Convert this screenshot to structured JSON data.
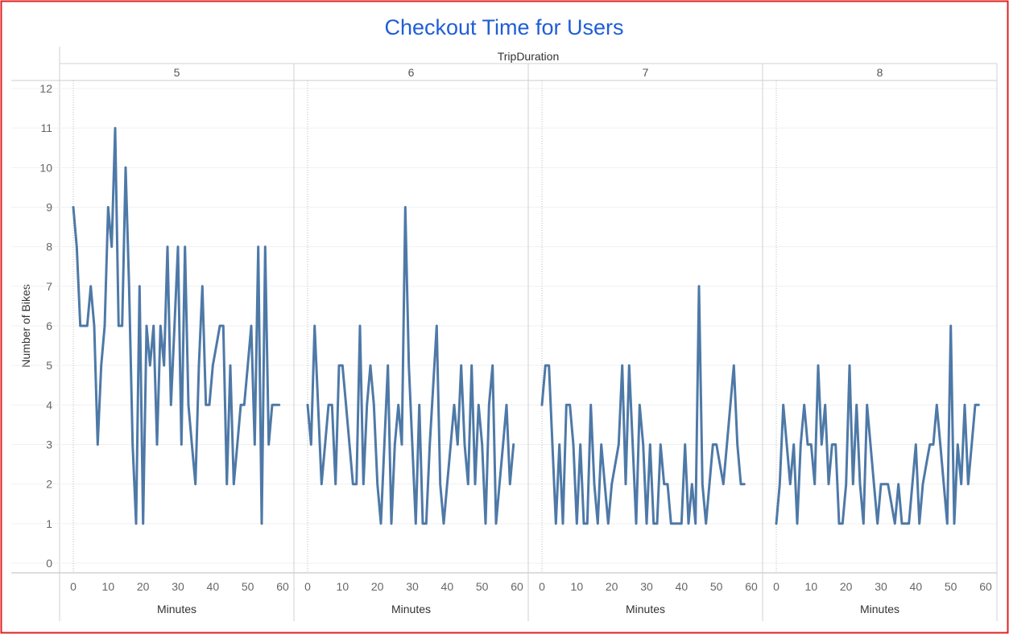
{
  "chart_data": {
    "type": "line",
    "title": "Checkout Time for Users",
    "column_header": "TripDuration",
    "xlabel": "Minutes",
    "ylabel": "Number of Bikes",
    "ylim": [
      0,
      12
    ],
    "y_ticks": [
      "0",
      "1",
      "2",
      "3",
      "4",
      "5",
      "6",
      "7",
      "8",
      "9",
      "10",
      "11",
      "12"
    ],
    "xlim": [
      0,
      60
    ],
    "x_ticks": [
      "0",
      "10",
      "20",
      "30",
      "40",
      "50",
      "60"
    ],
    "grid": true,
    "line_color": "#4e79a7",
    "title_color": "#1f5ed6",
    "panels": [
      {
        "name": "5",
        "x": [
          0,
          1,
          2,
          3,
          4,
          5,
          6,
          7,
          8,
          9,
          10,
          11,
          12,
          13,
          14,
          15,
          16,
          17,
          18,
          19,
          20,
          21,
          22,
          23,
          24,
          25,
          26,
          27,
          28,
          29,
          30,
          31,
          32,
          33,
          34,
          35,
          36,
          37,
          38,
          39,
          40,
          41,
          42,
          43,
          44,
          45,
          46,
          47,
          48,
          49,
          50,
          51,
          52,
          53,
          54,
          55,
          56,
          57,
          58,
          59
        ],
        "values": [
          9,
          8,
          6,
          6,
          6,
          7,
          6,
          3,
          5,
          6,
          9,
          8,
          11,
          6,
          6,
          10,
          7,
          3,
          1,
          7,
          1,
          6,
          5,
          6,
          3,
          6,
          5,
          8,
          4,
          6,
          8,
          3,
          8,
          4,
          3,
          2,
          5,
          7,
          4,
          4,
          5,
          5.5,
          6,
          6,
          2,
          5,
          2,
          3,
          4,
          4,
          5,
          6,
          3,
          8,
          1,
          8,
          3,
          4,
          4,
          4
        ]
      },
      {
        "name": "6",
        "x": [
          0,
          1,
          2,
          3,
          4,
          5,
          6,
          7,
          8,
          9,
          10,
          11,
          12,
          13,
          14,
          15,
          16,
          17,
          18,
          19,
          20,
          21,
          22,
          23,
          24,
          25,
          26,
          27,
          28,
          29,
          30,
          31,
          32,
          33,
          34,
          35,
          36,
          37,
          38,
          39,
          40,
          41,
          42,
          43,
          44,
          45,
          46,
          47,
          48,
          49,
          50,
          51,
          52,
          53,
          54,
          55,
          56,
          57,
          58,
          59
        ],
        "values": [
          4,
          3,
          6,
          4,
          2,
          3,
          4,
          4,
          2,
          5,
          5,
          4,
          3,
          2,
          2,
          6,
          2,
          4,
          5,
          4,
          2,
          1,
          3,
          5,
          1,
          3,
          4,
          3,
          9,
          5,
          3,
          1,
          4,
          1,
          1,
          3,
          4.5,
          6,
          2,
          1,
          2,
          3,
          4,
          3,
          5,
          3,
          2,
          5,
          2,
          4,
          3,
          1,
          4,
          5,
          1,
          2,
          3,
          4,
          2,
          3
        ]
      },
      {
        "name": "7",
        "x": [
          0,
          1,
          2,
          3,
          4,
          5,
          6,
          7,
          8,
          9,
          10,
          11,
          12,
          13,
          14,
          15,
          16,
          17,
          18,
          19,
          20,
          21,
          22,
          23,
          24,
          25,
          26,
          27,
          28,
          29,
          30,
          31,
          32,
          33,
          34,
          35,
          36,
          37,
          38,
          39,
          40,
          41,
          42,
          43,
          44,
          45,
          46,
          47,
          48,
          49,
          50,
          51,
          52,
          53,
          54,
          55,
          56,
          57,
          58
        ],
        "values": [
          4,
          5,
          5,
          3,
          1,
          3,
          1,
          4,
          4,
          3,
          1,
          3,
          1,
          1,
          4,
          2,
          1,
          3,
          2,
          1,
          2,
          2.5,
          3,
          5,
          2,
          5,
          3,
          1,
          4,
          3,
          1,
          3,
          1,
          1,
          3,
          2,
          2,
          1,
          1,
          1,
          1,
          3,
          1,
          2,
          1,
          7,
          2,
          1,
          2,
          3,
          3,
          2.5,
          2,
          3,
          4,
          5,
          3,
          2,
          2
        ]
      },
      {
        "name": "8",
        "x": [
          0,
          1,
          2,
          3,
          4,
          5,
          6,
          7,
          8,
          9,
          10,
          11,
          12,
          13,
          14,
          15,
          16,
          17,
          18,
          19,
          20,
          21,
          22,
          23,
          24,
          25,
          26,
          27,
          28,
          29,
          30,
          31,
          32,
          33,
          34,
          35,
          36,
          37,
          38,
          39,
          40,
          41,
          42,
          43,
          44,
          45,
          46,
          47,
          48,
          49,
          50,
          51,
          52,
          53,
          54,
          55,
          56,
          57,
          58
        ],
        "values": [
          1,
          2,
          4,
          3,
          2,
          3,
          1,
          3,
          4,
          3,
          3,
          2,
          5,
          3,
          4,
          2,
          3,
          3,
          1,
          1,
          2,
          5,
          2,
          4,
          2,
          1,
          4,
          3,
          2,
          1,
          2,
          2,
          2,
          1.5,
          1,
          2,
          1,
          1,
          1,
          2,
          3,
          1,
          2,
          2.5,
          3,
          3,
          4,
          3,
          2,
          1,
          6,
          1,
          3,
          2,
          4,
          2,
          3,
          4,
          4
        ]
      }
    ]
  }
}
